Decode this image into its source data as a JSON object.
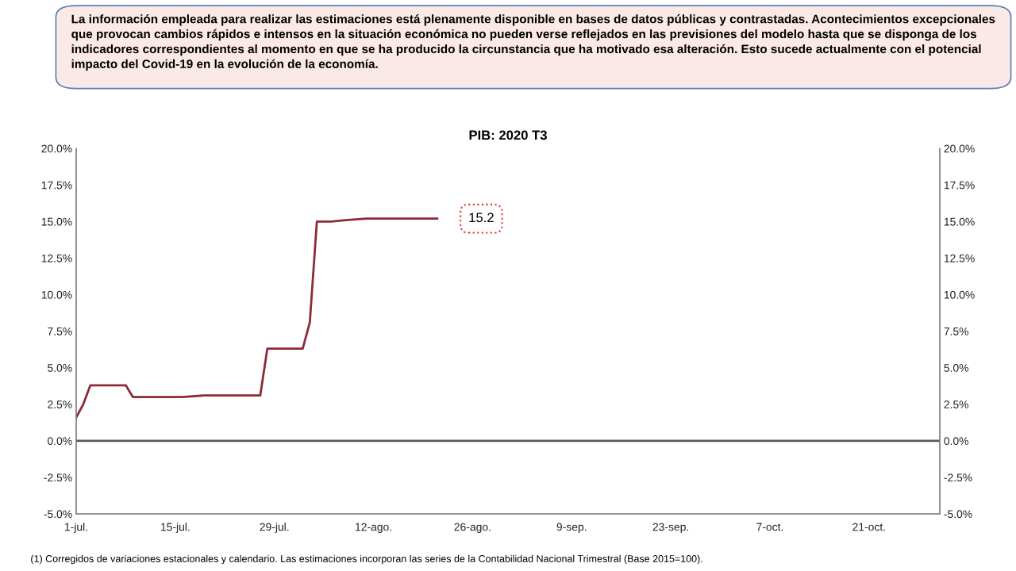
{
  "chart_data": {
    "type": "line",
    "title": "PIB: 2020 T3",
    "x": [
      "2020-07-01",
      "2020-07-02",
      "2020-07-03",
      "2020-07-08",
      "2020-07-09",
      "2020-07-16",
      "2020-07-19",
      "2020-07-27",
      "2020-07-28",
      "2020-08-02",
      "2020-08-03",
      "2020-08-04",
      "2020-08-06",
      "2020-08-08",
      "2020-08-11",
      "2020-08-21"
    ],
    "series": [
      {
        "color": "#8b2b3a",
        "values": [
          1.6,
          2.5,
          3.8,
          3.8,
          3.0,
          3.0,
          3.1,
          3.1,
          6.3,
          6.3,
          8.1,
          15.0,
          15.0,
          15.1,
          15.2,
          15.2
        ]
      }
    ],
    "xlim": [
      "2020-07-01",
      "2020-10-31"
    ],
    "xticks": [
      {
        "value": "2020-07-01",
        "label": "1-jul."
      },
      {
        "value": "2020-07-15",
        "label": "15-jul."
      },
      {
        "value": "2020-07-29",
        "label": "29-jul."
      },
      {
        "value": "2020-08-12",
        "label": "12-ago."
      },
      {
        "value": "2020-08-26",
        "label": "26-ago."
      },
      {
        "value": "2020-09-09",
        "label": "9-sep."
      },
      {
        "value": "2020-09-23",
        "label": "23-sep."
      },
      {
        "value": "2020-10-07",
        "label": "7-oct."
      },
      {
        "value": "2020-10-21",
        "label": "21-oct."
      }
    ],
    "ylim": [
      -5,
      20
    ],
    "yticks": [
      {
        "value": -5,
        "label": "-5.0%"
      },
      {
        "value": -2.5,
        "label": "-2.5%"
      },
      {
        "value": 0,
        "label": "0.0%"
      },
      {
        "value": 2.5,
        "label": "2.5%"
      },
      {
        "value": 5,
        "label": "5.0%"
      },
      {
        "value": 7.5,
        "label": "7.5%"
      },
      {
        "value": 10,
        "label": "10.0%"
      },
      {
        "value": 12.5,
        "label": "12.5%"
      },
      {
        "value": 15,
        "label": "15.0%"
      },
      {
        "value": 17.5,
        "label": "17.5%"
      },
      {
        "value": 20,
        "label": "20.0%"
      }
    ],
    "y2lim": [
      -5,
      20
    ],
    "y2ticks": [
      {
        "value": -5,
        "label": "-5.0%"
      },
      {
        "value": -2.5,
        "label": "-2.5%"
      },
      {
        "value": 0,
        "label": "0.0%"
      },
      {
        "value": 2.5,
        "label": "2.5%"
      },
      {
        "value": 5,
        "label": "5.0%"
      },
      {
        "value": 7.5,
        "label": "7.5%"
      },
      {
        "value": 10,
        "label": "10.0%"
      },
      {
        "value": 12.5,
        "label": "12.5%"
      },
      {
        "value": 15,
        "label": "15.0%"
      },
      {
        "value": 17.5,
        "label": "17.5%"
      },
      {
        "value": 20,
        "label": "20.0%"
      }
    ],
    "ref_lines": [
      {
        "axis": "y",
        "value": 0,
        "color": "#595959"
      }
    ],
    "grid": false,
    "legend": false,
    "marker": "none",
    "line_style": "solid",
    "annotations": [
      "La información empleada para realizar las estimaciones está plenamente disponible en bases de datos públicas y contrastadas. Acontecimientos excepcionales que provocan cambios rápidos e intensos en la situación económica no pueden verse reflejados en las previsiones del modelo hasta que se disponga de los indicadores correspondientes al momento en que se ha producido la circunstancia que ha motivado esa alteración. Esto sucede actualmente con el potencial impacto del Covid-19 en la evolución de la economía.",
      {
        "text": "15.2",
        "x": "2020-08-21",
        "y": 15.2
      },
      "(1) Corregidos de variaciones estacionales y calendario. Las estimaciones incorporan las series de la Contabilidad Nacional Trimestral (Base 2015=100)."
    ]
  }
}
